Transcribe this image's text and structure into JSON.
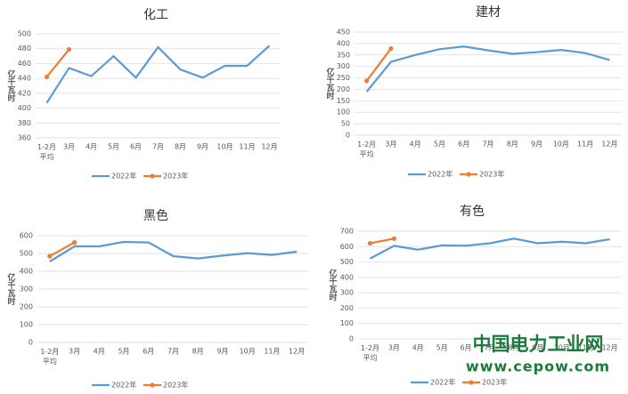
{
  "chart_data": [
    {
      "type": "line",
      "title": "化工",
      "y_label": "亿千瓦时",
      "categories": [
        "1-2月\n平均",
        "3月",
        "4月",
        "5月",
        "6月",
        "7月",
        "8月",
        "9月",
        "10月",
        "11月",
        "12月"
      ],
      "series": [
        {
          "name": "2022年",
          "color": "#5b9bd5",
          "values": [
            407,
            454,
            443,
            470,
            441,
            482,
            452,
            441,
            457,
            457,
            484
          ]
        },
        {
          "name": "2023年",
          "color": "#ed7d31",
          "marker": true,
          "values": [
            442,
            479,
            null,
            null,
            null,
            null,
            null,
            null,
            null,
            null,
            null
          ]
        }
      ],
      "ylim": [
        360,
        500
      ],
      "yticks": [
        360,
        380,
        400,
        420,
        440,
        460,
        480,
        500
      ]
    },
    {
      "type": "line",
      "title": "建材",
      "y_label": "亿千瓦时",
      "categories": [
        "1-2月\n平均",
        "3月",
        "4月",
        "5月",
        "6月",
        "7月",
        "8月",
        "9月",
        "10月",
        "11月",
        "12月"
      ],
      "series": [
        {
          "name": "2022年",
          "color": "#5b9bd5",
          "values": [
            190,
            320,
            350,
            375,
            387,
            370,
            355,
            362,
            372,
            358,
            328
          ]
        },
        {
          "name": "2023年",
          "color": "#ed7d31",
          "marker": true,
          "values": [
            237,
            378,
            null,
            null,
            null,
            null,
            null,
            null,
            null,
            null,
            null
          ]
        }
      ],
      "ylim": [
        0,
        450
      ],
      "yticks": [
        0,
        50,
        100,
        150,
        200,
        250,
        300,
        350,
        400,
        450
      ]
    },
    {
      "type": "line",
      "title": "黑色",
      "y_label": "亿千瓦时",
      "categories": [
        "1-2月\n平均",
        "3月",
        "4月",
        "5月",
        "6月",
        "7月",
        "8月",
        "9月",
        "10月",
        "11月",
        "12月"
      ],
      "series": [
        {
          "name": "2022年",
          "color": "#5b9bd5",
          "values": [
            455,
            540,
            540,
            565,
            562,
            485,
            472,
            488,
            502,
            492,
            510
          ]
        },
        {
          "name": "2023年",
          "color": "#ed7d31",
          "marker": true,
          "values": [
            485,
            562,
            null,
            null,
            null,
            null,
            null,
            null,
            null,
            null,
            null
          ]
        }
      ],
      "ylim": [
        0,
        600
      ],
      "yticks": [
        0,
        100,
        200,
        300,
        400,
        500,
        600
      ]
    },
    {
      "type": "line",
      "title": "有色",
      "y_label": "亿千瓦时",
      "categories": [
        "1-2月\n平均",
        "3月",
        "4月",
        "5月",
        "6月",
        "7月",
        "8月",
        "9月",
        "10月",
        "11月",
        "12月"
      ],
      "series": [
        {
          "name": "2022年",
          "color": "#5b9bd5",
          "values": [
            522,
            605,
            580,
            608,
            606,
            622,
            652,
            622,
            632,
            622,
            648
          ]
        },
        {
          "name": "2023年",
          "color": "#ed7d31",
          "marker": true,
          "values": [
            622,
            652,
            null,
            null,
            null,
            null,
            null,
            null,
            null,
            null,
            null
          ]
        }
      ],
      "ylim": [
        0,
        700
      ],
      "yticks": [
        0,
        100,
        200,
        300,
        400,
        500,
        600,
        700
      ]
    }
  ],
  "watermark": {
    "name": "中国电力工业网",
    "url": "www.cepow.com"
  }
}
